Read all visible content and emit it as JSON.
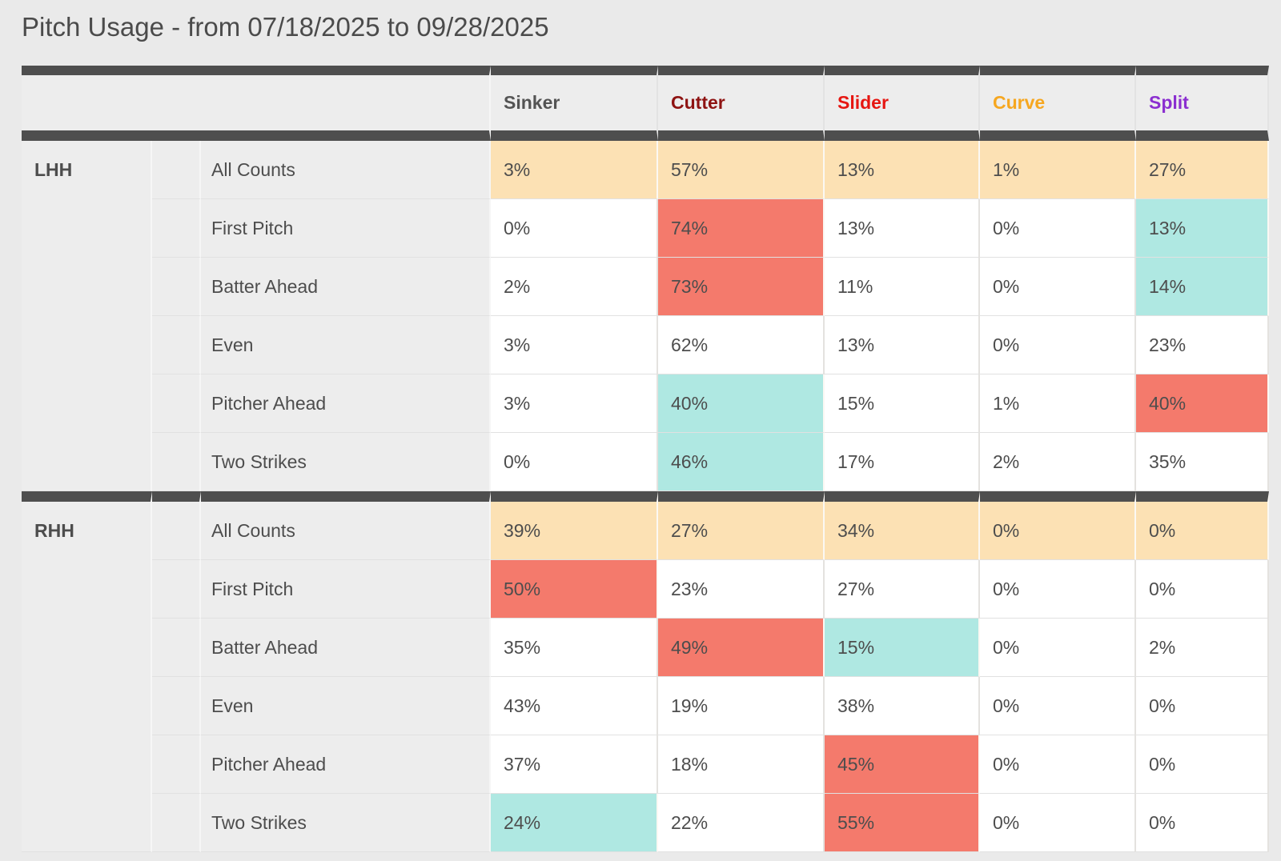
{
  "title": "Pitch Usage - from 07/18/2025 to 09/28/2025",
  "palette": {
    "band": "#4e4e4e",
    "page_bg": "#eaeaea",
    "cell_gray": "#ededed",
    "text": "#4d4d4d",
    "white": "#ffffff",
    "tan": "#fce1b4",
    "salmon": "#f47a6c",
    "cyan": "#afe8e2"
  },
  "chart_data": {
    "type": "heatmap",
    "title": "Pitch Usage - from 07/18/2025 to 09/28/2025",
    "value_unit": "percent of pitches thrown",
    "legend_position": "none",
    "columns": [
      {
        "label": "Sinker",
        "color": "#545454"
      },
      {
        "label": "Cutter",
        "color": "#8e1312"
      },
      {
        "label": "Slider",
        "color": "#e61611"
      },
      {
        "label": "Curve",
        "color": "#f6a720"
      },
      {
        "label": "Split",
        "color": "#8b2fd0"
      }
    ],
    "row_labels": [
      "All Counts",
      "First Pitch",
      "Batter Ahead",
      "Even",
      "Pitcher Ahead",
      "Two Strikes"
    ],
    "sections": [
      {
        "group": "LHH",
        "rows": [
          {
            "label": "All Counts",
            "cells": [
              {
                "value": "3%",
                "bg": "tan"
              },
              {
                "value": "57%",
                "bg": "tan"
              },
              {
                "value": "13%",
                "bg": "tan"
              },
              {
                "value": "1%",
                "bg": "tan"
              },
              {
                "value": "27%",
                "bg": "tan"
              }
            ]
          },
          {
            "label": "First Pitch",
            "cells": [
              {
                "value": "0%",
                "bg": "white"
              },
              {
                "value": "74%",
                "bg": "salmon"
              },
              {
                "value": "13%",
                "bg": "white"
              },
              {
                "value": "0%",
                "bg": "white"
              },
              {
                "value": "13%",
                "bg": "cyan"
              }
            ]
          },
          {
            "label": "Batter Ahead",
            "cells": [
              {
                "value": "2%",
                "bg": "white"
              },
              {
                "value": "73%",
                "bg": "salmon"
              },
              {
                "value": "11%",
                "bg": "white"
              },
              {
                "value": "0%",
                "bg": "white"
              },
              {
                "value": "14%",
                "bg": "cyan"
              }
            ]
          },
          {
            "label": "Even",
            "cells": [
              {
                "value": "3%",
                "bg": "white"
              },
              {
                "value": "62%",
                "bg": "white"
              },
              {
                "value": "13%",
                "bg": "white"
              },
              {
                "value": "0%",
                "bg": "white"
              },
              {
                "value": "23%",
                "bg": "white"
              }
            ]
          },
          {
            "label": "Pitcher Ahead",
            "cells": [
              {
                "value": "3%",
                "bg": "white"
              },
              {
                "value": "40%",
                "bg": "cyan"
              },
              {
                "value": "15%",
                "bg": "white"
              },
              {
                "value": "1%",
                "bg": "white"
              },
              {
                "value": "40%",
                "bg": "salmon"
              }
            ]
          },
          {
            "label": "Two Strikes",
            "cells": [
              {
                "value": "0%",
                "bg": "white"
              },
              {
                "value": "46%",
                "bg": "cyan"
              },
              {
                "value": "17%",
                "bg": "white"
              },
              {
                "value": "2%",
                "bg": "white"
              },
              {
                "value": "35%",
                "bg": "white"
              }
            ]
          }
        ]
      },
      {
        "group": "RHH",
        "rows": [
          {
            "label": "All Counts",
            "cells": [
              {
                "value": "39%",
                "bg": "tan"
              },
              {
                "value": "27%",
                "bg": "tan"
              },
              {
                "value": "34%",
                "bg": "tan"
              },
              {
                "value": "0%",
                "bg": "tan"
              },
              {
                "value": "0%",
                "bg": "tan"
              }
            ]
          },
          {
            "label": "First Pitch",
            "cells": [
              {
                "value": "50%",
                "bg": "salmon"
              },
              {
                "value": "23%",
                "bg": "white"
              },
              {
                "value": "27%",
                "bg": "white"
              },
              {
                "value": "0%",
                "bg": "white"
              },
              {
                "value": "0%",
                "bg": "white"
              }
            ]
          },
          {
            "label": "Batter Ahead",
            "cells": [
              {
                "value": "35%",
                "bg": "white"
              },
              {
                "value": "49%",
                "bg": "salmon"
              },
              {
                "value": "15%",
                "bg": "cyan"
              },
              {
                "value": "0%",
                "bg": "white"
              },
              {
                "value": "2%",
                "bg": "white"
              }
            ]
          },
          {
            "label": "Even",
            "cells": [
              {
                "value": "43%",
                "bg": "white"
              },
              {
                "value": "19%",
                "bg": "white"
              },
              {
                "value": "38%",
                "bg": "white"
              },
              {
                "value": "0%",
                "bg": "white"
              },
              {
                "value": "0%",
                "bg": "white"
              }
            ]
          },
          {
            "label": "Pitcher Ahead",
            "cells": [
              {
                "value": "37%",
                "bg": "white"
              },
              {
                "value": "18%",
                "bg": "white"
              },
              {
                "value": "45%",
                "bg": "salmon"
              },
              {
                "value": "0%",
                "bg": "white"
              },
              {
                "value": "0%",
                "bg": "white"
              }
            ]
          },
          {
            "label": "Two Strikes",
            "cells": [
              {
                "value": "24%",
                "bg": "cyan"
              },
              {
                "value": "22%",
                "bg": "white"
              },
              {
                "value": "55%",
                "bg": "salmon"
              },
              {
                "value": "0%",
                "bg": "white"
              },
              {
                "value": "0%",
                "bg": "white"
              }
            ]
          }
        ]
      }
    ]
  }
}
